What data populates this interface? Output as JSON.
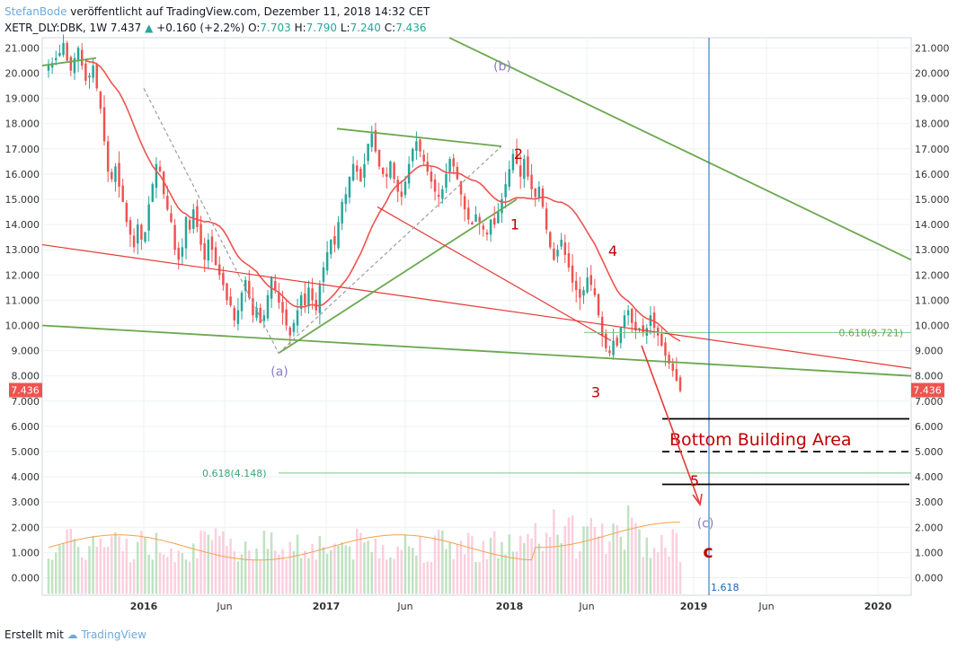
{
  "header": {
    "author": "StefanBode",
    "published": "veröffentlicht auf TradingView.com, Dezember 11, 2018 14:32 CET",
    "symbol": "XETR_DLY:DBK, 1W",
    "last": "7.437",
    "change": "+0.160 (+2.2%)",
    "o_label": "O:",
    "o_value": "7.703",
    "h_label": "H:",
    "h_value": "7.790",
    "l_label": "L:",
    "l_value": "7.240",
    "c_label": "C:",
    "c_value": "7.436"
  },
  "footer": {
    "created_with": "Erstellt mit",
    "brand": "TradingView"
  },
  "colors": {
    "up": "#26a69a",
    "down": "#ef5350",
    "up_light": "#a5d6a7",
    "down_light": "#f8bbd0",
    "ma_red": "#ef5350",
    "ma_green": "#4caf50",
    "trend_green": "#6aa84f",
    "trend_red": "#e53935",
    "text_red": "#c00000",
    "wave_purple": "#8e7cc3",
    "fib_blue": "#1565c0",
    "price_tag": "#ef5350"
  },
  "chart_data": {
    "type": "candlestick",
    "y_axis": {
      "min": 0,
      "max": 21,
      "ticks": [
        "21.000",
        "20.000",
        "19.000",
        "18.000",
        "17.000",
        "16.000",
        "15.000",
        "14.000",
        "13.000",
        "12.000",
        "11.000",
        "10.000",
        "9.000",
        "8.000",
        "7.000",
        "6.000",
        "5.000",
        "4.000",
        "3.000",
        "2.000",
        "1.000",
        "0.000"
      ]
    },
    "x_axis": {
      "ticks": [
        "2016",
        "Jun",
        "2017",
        "Jun",
        "2018",
        "Jun",
        "2019",
        "Jun",
        "2020"
      ]
    },
    "last_price_tag": "7.436",
    "price_closes": [
      20.3,
      20.4,
      20.6,
      20.8,
      21.2,
      20.5,
      20.1,
      20.6,
      21.0,
      20.3,
      19.7,
      19.9,
      20.3,
      19.4,
      18.6,
      17.3,
      16.1,
      15.8,
      16.3,
      15.5,
      14.9,
      14.1,
      13.6,
      13.1,
      14.0,
      13.4,
      13.7,
      14.8,
      15.6,
      16.4,
      16.1,
      15.2,
      14.6,
      14.1,
      13.0,
      12.6,
      13.1,
      14.3,
      13.8,
      14.6,
      13.9,
      13.2,
      12.6,
      13.4,
      13.0,
      12.4,
      12.0,
      11.6,
      11.0,
      10.8,
      10.2,
      10.6,
      11.3,
      11.8,
      11.1,
      10.4,
      10.7,
      10.1,
      10.4,
      11.2,
      11.9,
      11.4,
      10.9,
      10.5,
      10.0,
      9.6,
      10.1,
      10.6,
      11.2,
      10.8,
      11.5,
      11.0,
      10.6,
      11.6,
      12.3,
      12.9,
      13.4,
      13.2,
      14.1,
      14.9,
      15.2,
      15.9,
      16.4,
      16.1,
      15.7,
      16.4,
      17.2,
      17.6,
      16.9,
      16.3,
      16.0,
      15.9,
      16.5,
      15.8,
      15.3,
      15.1,
      15.7,
      16.4,
      17.0,
      17.3,
      16.9,
      16.5,
      16.1,
      15.7,
      15.3,
      15.1,
      15.4,
      16.0,
      16.6,
      16.3,
      15.8,
      15.2,
      14.6,
      14.2,
      14.0,
      14.4,
      14.1,
      13.8,
      13.6,
      14.2,
      14.0,
      14.5,
      15.0,
      15.6,
      16.2,
      16.8,
      16.4,
      15.9,
      16.6,
      15.9,
      15.4,
      15.1,
      15.5,
      14.7,
      13.8,
      13.1,
      12.6,
      13.0,
      13.4,
      12.8,
      12.3,
      11.7,
      11.4,
      11.1,
      11.4,
      11.9,
      11.6,
      11.2,
      10.4,
      9.6,
      9.1,
      8.9,
      9.4,
      9.2,
      9.9,
      10.4,
      10.6,
      10.1,
      9.8,
      9.9,
      9.7,
      9.9,
      10.4,
      9.9,
      9.6,
      9.2,
      8.8,
      8.5,
      8.2,
      7.8,
      7.4
    ],
    "annotations": {
      "wave_labels_red": [
        "1",
        "2",
        "3",
        "4",
        "5",
        "c"
      ],
      "wave_labels_purple": [
        "(a)",
        "(b)",
        "(c)"
      ],
      "fib_price_1": "0.618(9.721)",
      "fib_price_2": "0.618(4.148)",
      "fib_time": "1.618",
      "zone_label": "Bottom Building Area",
      "zone_levels": [
        6.3,
        5.0,
        3.7
      ]
    },
    "volume_axis_max": 5.0
  }
}
